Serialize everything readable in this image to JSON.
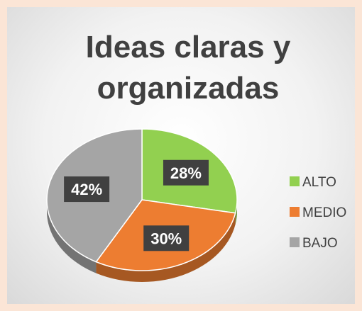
{
  "chart_data": {
    "type": "pie",
    "title": "Ideas claras y organizadas",
    "categories": [
      "ALTO",
      "MEDIO",
      "BAJO"
    ],
    "values": [
      28,
      30,
      42
    ],
    "value_labels": [
      "28%",
      "30%",
      "42%"
    ],
    "colors": [
      "#92d050",
      "#ed7d31",
      "#a5a5a5"
    ],
    "legend": "right"
  }
}
